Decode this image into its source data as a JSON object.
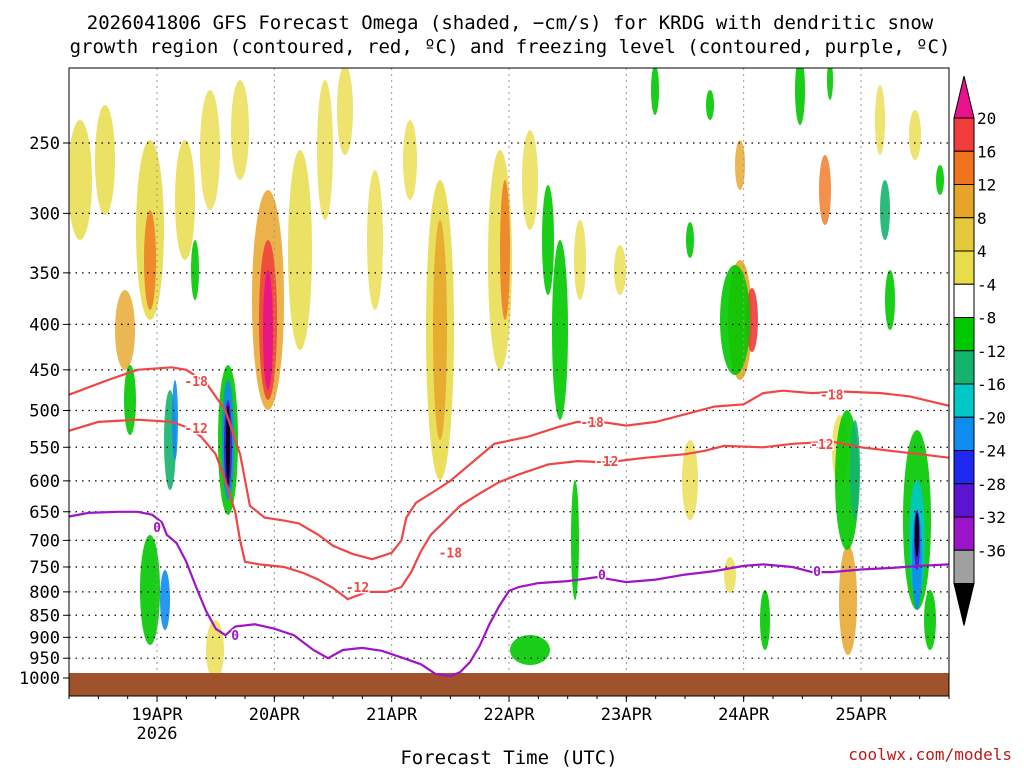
{
  "chart_data": {
    "type": "heatmap",
    "title_line1": "2026041806 GFS Forecast Omega (shaded, −cm/s) for KRDG with dendritic snow",
    "title_line2": "growth region (contoured, red, ºC) and freezing level (contoured, purple, ºC)",
    "xlabel": "Forecast Time (UTC)",
    "ylabel": "",
    "credit": "coolwx.com/models",
    "x_start_hours": 6,
    "x_end_hours": 186,
    "x_ticks": [
      {
        "label": "19APR",
        "sub": "2026",
        "hours": 24
      },
      {
        "label": "20APR",
        "sub": "",
        "hours": 48
      },
      {
        "label": "21APR",
        "sub": "",
        "hours": 72
      },
      {
        "label": "22APR",
        "sub": "",
        "hours": 96
      },
      {
        "label": "23APR",
        "sub": "",
        "hours": 120
      },
      {
        "label": "24APR",
        "sub": "",
        "hours": 144
      },
      {
        "label": "25APR",
        "sub": "",
        "hours": 168
      }
    ],
    "y_ticks": [
      250,
      300,
      350,
      400,
      450,
      500,
      550,
      600,
      650,
      700,
      750,
      800,
      850,
      900,
      950,
      1000
    ],
    "y_range": [
      200,
      1000
    ],
    "colorbar": {
      "labels": [
        "20",
        "16",
        "12",
        "8",
        "4",
        "-4",
        "-8",
        "-12",
        "-16",
        "-20",
        "-24",
        "-28",
        "-32",
        "-36"
      ],
      "top_color": "#e8128c",
      "bottom_color": "#000000",
      "colors": [
        "#f03c3c",
        "#f0741e",
        "#e6a528",
        "#e6c83c",
        "#e8dc4a",
        "#ffffff",
        "#00c800",
        "#14b46e",
        "#00c8c8",
        "#0f8cf0",
        "#1e28f0",
        "#5a14d2",
        "#9b14c8",
        "#a0a0a0"
      ]
    },
    "contours": [
      {
        "name": "-18",
        "color": "#f04646",
        "points": [
          [
            6,
            480
          ],
          [
            14,
            462
          ],
          [
            20,
            450
          ],
          [
            27,
            447
          ],
          [
            30,
            450
          ],
          [
            34,
            465
          ],
          [
            38,
            500
          ],
          [
            40,
            540
          ],
          [
            41,
            560
          ],
          [
            43,
            640
          ],
          [
            46,
            660
          ],
          [
            50,
            665
          ],
          [
            53,
            670
          ],
          [
            57,
            690
          ],
          [
            60,
            710
          ],
          [
            64,
            725
          ],
          [
            68,
            735
          ],
          [
            72,
            723
          ],
          [
            74,
            700
          ],
          [
            75,
            660
          ],
          [
            77,
            635
          ],
          [
            80,
            620
          ],
          [
            84,
            600
          ],
          [
            88,
            575
          ],
          [
            93,
            545
          ],
          [
            100,
            535
          ],
          [
            106,
            522
          ],
          [
            110,
            515
          ],
          [
            116,
            516
          ],
          [
            120,
            520
          ],
          [
            126,
            515
          ],
          [
            132,
            505
          ],
          [
            138,
            495
          ],
          [
            144,
            492
          ],
          [
            148,
            478
          ],
          [
            152,
            475
          ],
          [
            158,
            478
          ],
          [
            164,
            476
          ],
          [
            172,
            478
          ],
          [
            178,
            482
          ],
          [
            186,
            494
          ]
        ],
        "labels": [
          [
            32,
            463
          ],
          [
            84,
            722
          ],
          [
            113,
            515
          ],
          [
            162,
            480
          ]
        ]
      },
      {
        "name": "-12",
        "color": "#f04646",
        "points": [
          [
            6,
            527
          ],
          [
            12,
            515
          ],
          [
            20,
            512
          ],
          [
            27,
            515
          ],
          [
            30,
            522
          ],
          [
            33,
            535
          ],
          [
            36,
            560
          ],
          [
            38,
            600
          ],
          [
            40,
            650
          ],
          [
            41,
            700
          ],
          [
            42,
            740
          ],
          [
            45,
            745
          ],
          [
            50,
            750
          ],
          [
            54,
            762
          ],
          [
            57,
            775
          ],
          [
            60,
            792
          ],
          [
            63,
            815
          ],
          [
            67,
            800
          ],
          [
            71,
            800
          ],
          [
            74,
            790
          ],
          [
            76,
            760
          ],
          [
            78,
            720
          ],
          [
            80,
            690
          ],
          [
            83,
            665
          ],
          [
            86,
            640
          ],
          [
            90,
            620
          ],
          [
            94,
            602
          ],
          [
            98,
            590
          ],
          [
            104,
            575
          ],
          [
            110,
            570
          ],
          [
            116,
            572
          ],
          [
            124,
            565
          ],
          [
            132,
            560
          ],
          [
            136,
            555
          ],
          [
            140,
            548
          ],
          [
            148,
            550
          ],
          [
            154,
            545
          ],
          [
            162,
            542
          ],
          [
            168,
            550
          ],
          [
            174,
            555
          ],
          [
            180,
            560
          ],
          [
            186,
            565
          ]
        ],
        "labels": [
          [
            32,
            523
          ],
          [
            65,
            790
          ],
          [
            116,
            570
          ],
          [
            160,
            545
          ]
        ]
      },
      {
        "name": "0",
        "color": "#a014c8",
        "points": [
          [
            6,
            658
          ],
          [
            10,
            652
          ],
          [
            16,
            650
          ],
          [
            20,
            650
          ],
          [
            23,
            655
          ],
          [
            25,
            668
          ],
          [
            26,
            690
          ],
          [
            28,
            705
          ],
          [
            30,
            740
          ],
          [
            32,
            790
          ],
          [
            34,
            840
          ],
          [
            36,
            880
          ],
          [
            38,
            895
          ],
          [
            40,
            875
          ],
          [
            44,
            870
          ],
          [
            48,
            880
          ],
          [
            52,
            895
          ],
          [
            56,
            930
          ],
          [
            59,
            950
          ],
          [
            62,
            930
          ],
          [
            66,
            925
          ],
          [
            70,
            932
          ],
          [
            74,
            948
          ],
          [
            78,
            965
          ],
          [
            81,
            990
          ],
          [
            84,
            995
          ],
          [
            86,
            985
          ],
          [
            88,
            960
          ],
          [
            90,
            920
          ],
          [
            92,
            870
          ],
          [
            94,
            830
          ],
          [
            96,
            798
          ],
          [
            98,
            790
          ],
          [
            102,
            782
          ],
          [
            108,
            778
          ],
          [
            114,
            770
          ],
          [
            120,
            780
          ],
          [
            126,
            775
          ],
          [
            132,
            765
          ],
          [
            138,
            758
          ],
          [
            144,
            748
          ],
          [
            148,
            745
          ],
          [
            154,
            750
          ],
          [
            158,
            760
          ],
          [
            162,
            760
          ],
          [
            168,
            755
          ],
          [
            174,
            752
          ],
          [
            180,
            748
          ],
          [
            186,
            745
          ]
        ],
        "labels": [
          [
            24,
            676
          ],
          [
            40,
            895
          ],
          [
            115,
            765
          ],
          [
            159,
            758
          ]
        ]
      }
    ]
  }
}
